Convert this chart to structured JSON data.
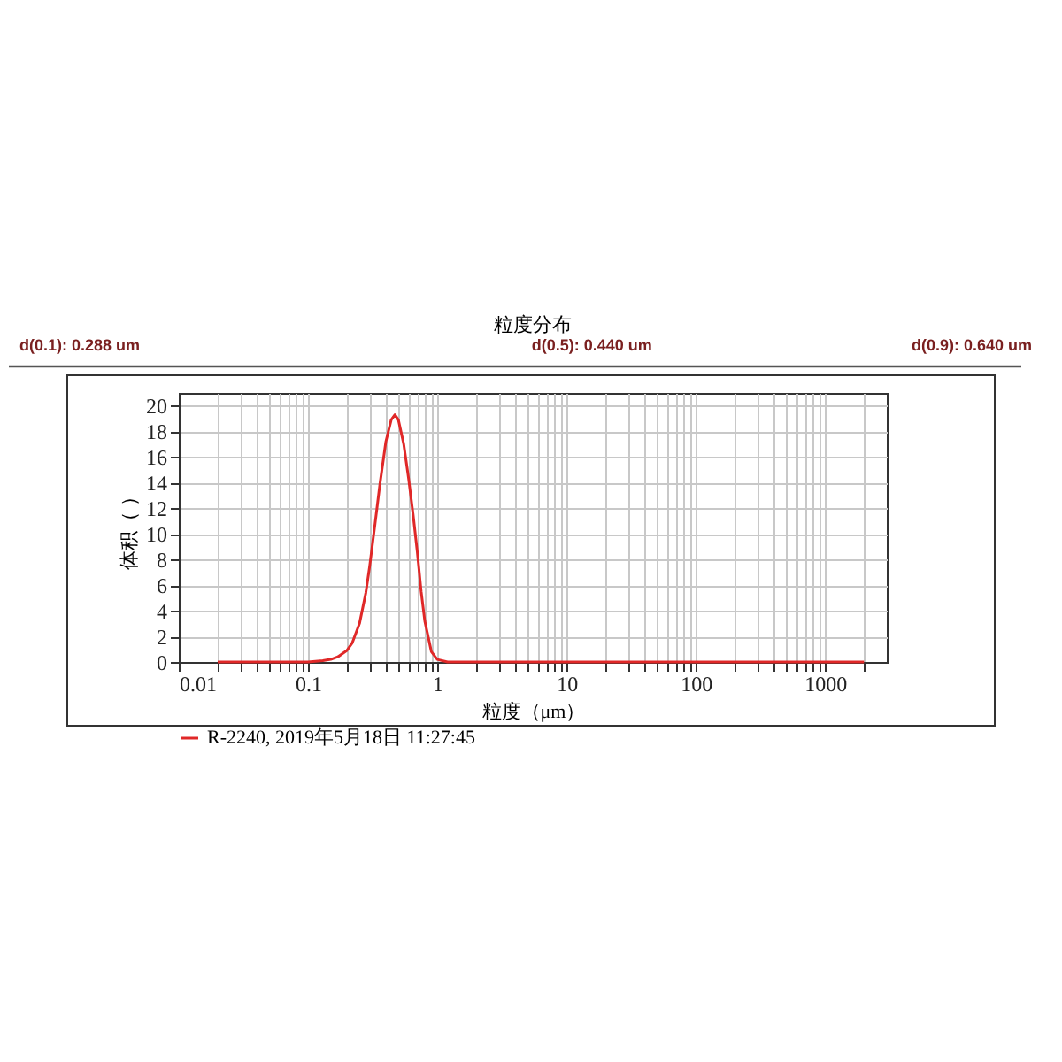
{
  "chart_data": {
    "type": "line",
    "title": "粒度分布",
    "xlabel": "粒度（μm）",
    "ylabel": "体积（ ）",
    "annotations": [
      "d(0.1):  0.288  um",
      "d(0.5):  0.440  um",
      "d(0.9):  0.640  um"
    ],
    "log": "x",
    "grid": true,
    "legend": "bottom",
    "marker": "none",
    "line_style": "solid",
    "xlim": [
      0.01,
      3000
    ],
    "ylim": [
      0,
      21
    ],
    "xticks": [
      0.01,
      {
        "value": 0.02,
        "label": null
      },
      {
        "value": 0.03,
        "label": null
      },
      {
        "value": 0.04,
        "label": null
      },
      {
        "value": 0.05,
        "label": null
      },
      {
        "value": 0.06,
        "label": null
      },
      {
        "value": 0.07,
        "label": null
      },
      {
        "value": 0.08,
        "label": null
      },
      {
        "value": 0.09,
        "label": null
      },
      0.1,
      {
        "value": 0.2,
        "label": null
      },
      {
        "value": 0.3,
        "label": null
      },
      {
        "value": 0.4,
        "label": null
      },
      {
        "value": 0.5,
        "label": null
      },
      {
        "value": 0.6,
        "label": null
      },
      {
        "value": 0.7,
        "label": null
      },
      {
        "value": 0.8,
        "label": null
      },
      {
        "value": 0.9,
        "label": null
      },
      1,
      {
        "value": 2,
        "label": null
      },
      {
        "value": 3,
        "label": null
      },
      {
        "value": 4,
        "label": null
      },
      {
        "value": 5,
        "label": null
      },
      {
        "value": 6,
        "label": null
      },
      {
        "value": 7,
        "label": null
      },
      {
        "value": 8,
        "label": null
      },
      {
        "value": 9,
        "label": null
      },
      10,
      {
        "value": 20,
        "label": null
      },
      {
        "value": 30,
        "label": null
      },
      {
        "value": 40,
        "label": null
      },
      {
        "value": 50,
        "label": null
      },
      {
        "value": 60,
        "label": null
      },
      {
        "value": 70,
        "label": null
      },
      {
        "value": 80,
        "label": null
      },
      {
        "value": 90,
        "label": null
      },
      100,
      {
        "value": 200,
        "label": null
      },
      {
        "value": 300,
        "label": null
      },
      {
        "value": 400,
        "label": null
      },
      {
        "value": 500,
        "label": null
      },
      {
        "value": 600,
        "label": null
      },
      {
        "value": 700,
        "label": null
      },
      {
        "value": 800,
        "label": null
      },
      {
        "value": 900,
        "label": null
      },
      1000,
      {
        "value": 2000,
        "label": null
      }
    ],
    "yticks": [
      0,
      2,
      4,
      6,
      8,
      10,
      12,
      14,
      16,
      18,
      20
    ],
    "series": [
      {
        "name": "R-2240, 2019年5月18日 11:27:45",
        "color": "#e02828",
        "x": [
          0.02,
          0.05,
          0.1,
          0.13,
          0.15,
          0.17,
          0.2,
          0.22,
          0.25,
          0.28,
          0.3,
          0.33,
          0.36,
          0.4,
          0.44,
          0.47,
          0.5,
          0.55,
          0.6,
          0.65,
          0.7,
          0.75,
          0.8,
          0.9,
          1.0,
          1.2,
          2,
          10,
          100,
          1000,
          2000
        ],
        "values": [
          0,
          0,
          0,
          0.1,
          0.2,
          0.4,
          0.9,
          1.5,
          3.0,
          5.4,
          7.5,
          10.8,
          13.9,
          17.2,
          18.9,
          19.3,
          18.9,
          17.0,
          14.3,
          11.5,
          8.6,
          5.5,
          3.2,
          0.8,
          0.2,
          0,
          0,
          0,
          0,
          0,
          0
        ]
      }
    ]
  }
}
